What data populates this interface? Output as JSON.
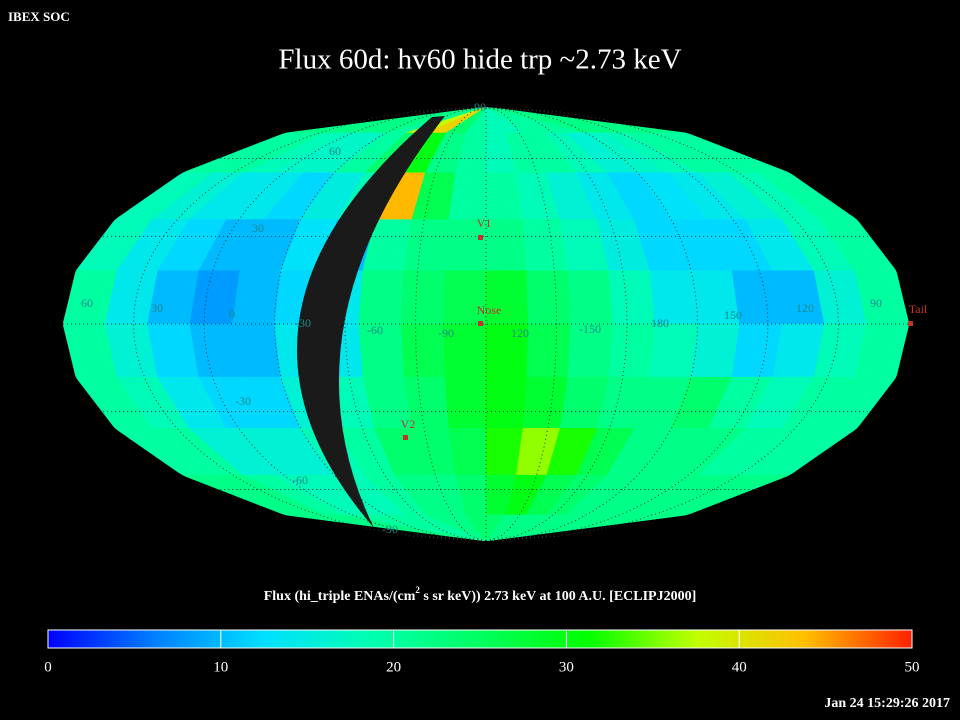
{
  "header": {
    "org": "IBEX SOC",
    "title": "Flux   60d: hv60 hide trp ~2.73 keV",
    "timestamp": "Jan 24 15:29:26 2017"
  },
  "map": {
    "lat_labels": [
      "90",
      "60",
      "30",
      "-30",
      "-60",
      "-90"
    ],
    "lon_labels": [
      "60",
      "30",
      "0",
      "-30",
      "-60",
      "-90",
      "120",
      "-150",
      "180",
      "150",
      "120",
      "90"
    ],
    "markers": [
      "V1",
      "Nose",
      "V2",
      "Tail"
    ],
    "flux_grid": [
      [
        22,
        22,
        22,
        22,
        22,
        20,
        38,
        42,
        24,
        20,
        18,
        18,
        20,
        20,
        20,
        22,
        22,
        22,
        22,
        22
      ],
      [
        20,
        20,
        18,
        17,
        17,
        20,
        24,
        30,
        22,
        20,
        18,
        20,
        20,
        18,
        16,
        17,
        18,
        20,
        20,
        20
      ],
      [
        18,
        16,
        14,
        14,
        12,
        15,
        18,
        44,
        26,
        20,
        20,
        18,
        16,
        14,
        12,
        13,
        14,
        16,
        18,
        20
      ],
      [
        18,
        14,
        12,
        10,
        10,
        13,
        10,
        20,
        22,
        22,
        22,
        20,
        18,
        15,
        12,
        12,
        12,
        14,
        18,
        20
      ],
      [
        20,
        14,
        10,
        8,
        10,
        12,
        14,
        22,
        24,
        26,
        28,
        24,
        22,
        18,
        14,
        14,
        10,
        10,
        16,
        20
      ],
      [
        20,
        16,
        12,
        10,
        10,
        14,
        14,
        22,
        26,
        28,
        30,
        26,
        22,
        20,
        18,
        16,
        12,
        14,
        18,
        20
      ],
      [
        20,
        18,
        14,
        12,
        12,
        16,
        18,
        22,
        24,
        28,
        30,
        28,
        24,
        22,
        22,
        24,
        20,
        18,
        20,
        20
      ],
      [
        20,
        20,
        16,
        16,
        16,
        18,
        20,
        24,
        24,
        26,
        32,
        36,
        32,
        26,
        22,
        22,
        22,
        20,
        20,
        20
      ],
      [
        22,
        22,
        20,
        18,
        18,
        18,
        20,
        22,
        22,
        24,
        28,
        30,
        26,
        24,
        22,
        22,
        22,
        22,
        22,
        22
      ],
      [
        22,
        22,
        22,
        20,
        20,
        20,
        20,
        22,
        22,
        24,
        24,
        22,
        22,
        22,
        22,
        22,
        22,
        22,
        22,
        22
      ]
    ]
  },
  "colorbar": {
    "label_parts": [
      "Flux (hi_triple ENAs/(cm",
      "2",
      " s sr keV))  2.73 keV at 100 A.U. [ECLIPJ2000]"
    ],
    "range": [
      0,
      50
    ],
    "ticks": [
      0,
      10,
      20,
      30,
      40,
      50
    ],
    "colors": [
      "#0000ff",
      "#0080ff",
      "#00e0ff",
      "#00ffb0",
      "#00ff60",
      "#00ff00",
      "#c0ff00",
      "#ffc000",
      "#ff2000"
    ]
  }
}
